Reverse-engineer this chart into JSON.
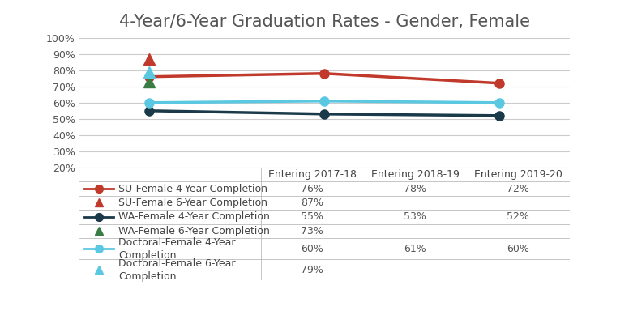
{
  "title": "4-Year/6-Year Graduation Rates - Gender, Female",
  "x_labels": [
    "Entering 2017-18",
    "Entering 2018-19",
    "Entering 2019-20"
  ],
  "series": [
    {
      "label": "SU-Female 4-Year Completion",
      "values": [
        76,
        78,
        72
      ],
      "color": "#C0392B",
      "marker": "o",
      "linewidth": 2.5,
      "markersize": 8,
      "type": "line"
    },
    {
      "label": "SU-Female 6-Year Completion",
      "values": [
        87,
        null,
        null
      ],
      "color": "#C0392B",
      "marker": "^",
      "markersize": 10,
      "type": "point"
    },
    {
      "label": "WA-Female 4-Year Completion",
      "values": [
        55,
        53,
        52
      ],
      "color": "#1A3A4A",
      "marker": "o",
      "linewidth": 2.5,
      "markersize": 8,
      "type": "line"
    },
    {
      "label": "WA-Female 6-Year Completion",
      "values": [
        73,
        null,
        null
      ],
      "color": "#3A7D44",
      "marker": "^",
      "markersize": 10,
      "type": "point"
    },
    {
      "label": "Doctoral-Female 4-Year\nCompletion",
      "values": [
        60,
        61,
        60
      ],
      "color": "#5BC8E2",
      "marker": "o",
      "linewidth": 2.5,
      "markersize": 8,
      "type": "line"
    },
    {
      "label": "Doctoral-Female 6-Year\nCompletion",
      "values": [
        79,
        null,
        null
      ],
      "color": "#5BC8E2",
      "marker": "^",
      "markersize": 10,
      "type": "point"
    }
  ],
  "ylim": [
    20,
    100
  ],
  "yticks": [
    20,
    30,
    40,
    50,
    60,
    70,
    80,
    90,
    100
  ],
  "ytick_labels": [
    "20%",
    "30%",
    "40%",
    "50%",
    "60%",
    "70%",
    "80%",
    "90%",
    "100%"
  ],
  "table_data": [
    [
      "76%",
      "78%",
      "72%"
    ],
    [
      "87%",
      "",
      ""
    ],
    [
      "55%",
      "53%",
      "52%"
    ],
    [
      "73%",
      "",
      ""
    ],
    [
      "60%",
      "61%",
      "60%"
    ],
    [
      "79%",
      "",
      ""
    ]
  ],
  "row_labels_display": [
    "SU-Female 4-Year Completion",
    "SU-Female 6-Year Completion",
    "WA-Female 4-Year Completion",
    "WA-Female 6-Year Completion",
    "Doctoral-Female 4-Year\nCompletion",
    "Doctoral-Female 6-Year\nCompletion"
  ],
  "row_colors": [
    "#C0392B",
    "#C0392B",
    "#1A3A4A",
    "#3A7D44",
    "#5BC8E2",
    "#5BC8E2"
  ],
  "row_marker": [
    "o",
    "^",
    "o",
    "^",
    "o",
    "^"
  ],
  "row_is_line": [
    true,
    false,
    true,
    false,
    true,
    false
  ],
  "background_color": "#FFFFFF",
  "grid_color": "#CCCCCC",
  "title_fontsize": 15,
  "tick_fontsize": 9,
  "table_fontsize": 9,
  "figsize": [
    7.81,
    3.89
  ],
  "dpi": 100
}
